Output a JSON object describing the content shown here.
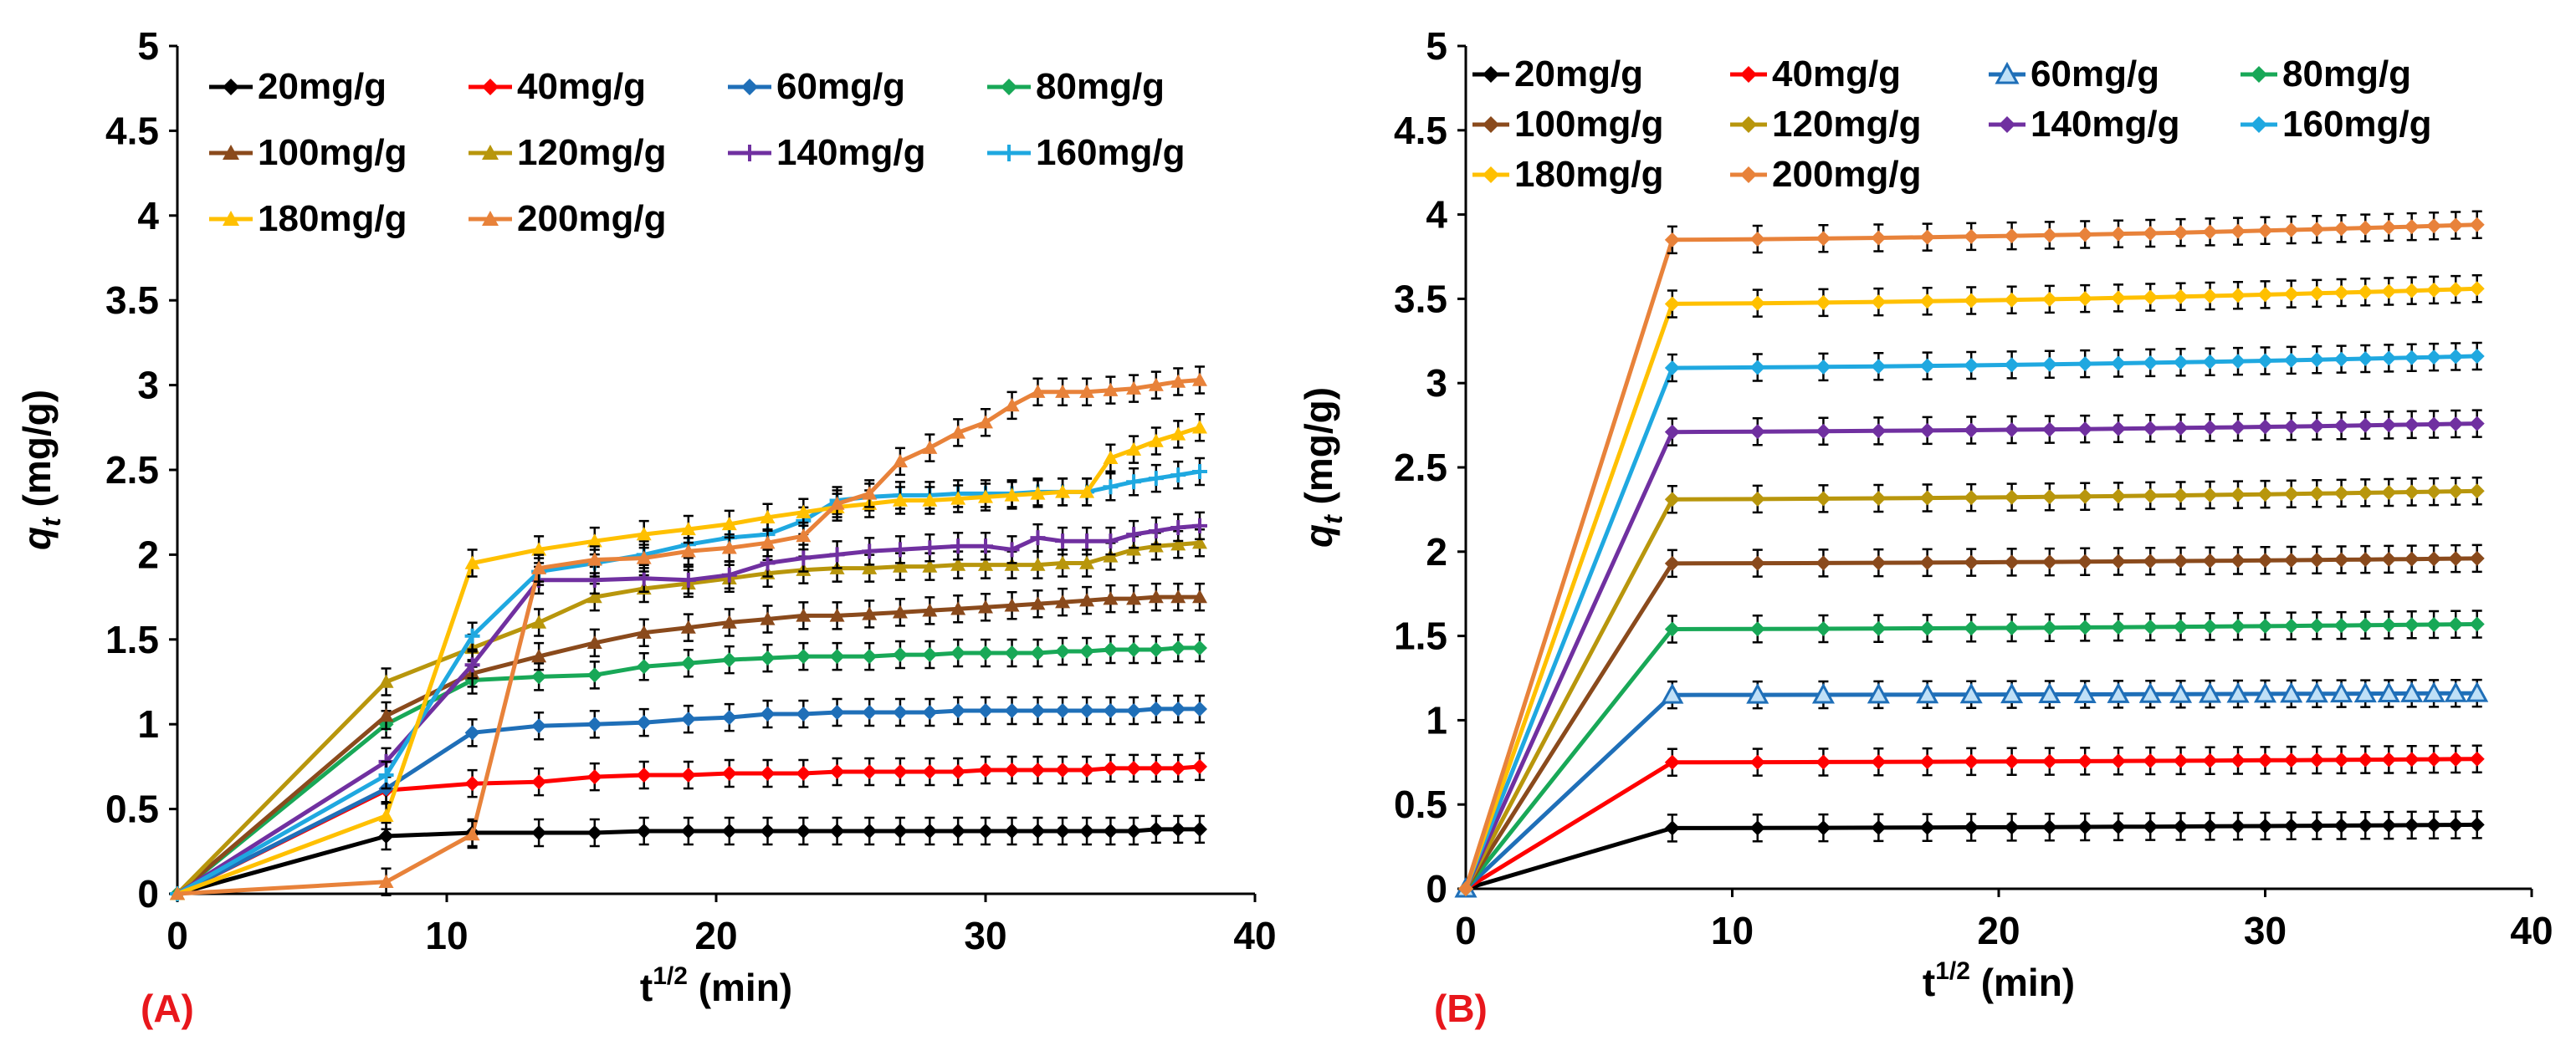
{
  "chart_data": [
    {
      "type": "line",
      "panel_label": "(A)",
      "xlabel_base": "t",
      "xlabel_sup": "1/2",
      "xlabel_unit": " (min)",
      "ylabel_var": "q",
      "ylabel_sub": "t",
      "ylabel_unit": " (mg/g)",
      "xlim": [
        0,
        40
      ],
      "ylim": [
        0,
        5
      ],
      "xticks": [
        "0",
        "10",
        "20",
        "30",
        "40"
      ],
      "yticks": [
        "0",
        "0.5",
        "1",
        "1.5",
        "2",
        "2.5",
        "3",
        "3.5",
        "4",
        "4.5",
        "5"
      ],
      "legend_position": "top-left",
      "grid": false,
      "x": [
        0,
        7.75,
        10.95,
        13.42,
        15.49,
        17.32,
        18.97,
        20.49,
        21.91,
        23.24,
        24.49,
        25.69,
        26.83,
        27.93,
        28.98,
        30.0,
        30.98,
        31.94,
        32.86,
        33.76,
        34.64,
        35.5,
        36.33,
        37.15,
        37.95
      ],
      "series": [
        {
          "name": "20mg/g",
          "color": "#000000",
          "marker": "diamond",
          "values": [
            0,
            0.34,
            0.36,
            0.36,
            0.36,
            0.37,
            0.37,
            0.37,
            0.37,
            0.37,
            0.37,
            0.37,
            0.37,
            0.37,
            0.37,
            0.37,
            0.37,
            0.37,
            0.37,
            0.37,
            0.37,
            0.37,
            0.38,
            0.38,
            0.38
          ]
        },
        {
          "name": "40mg/g",
          "color": "#ff0000",
          "marker": "diamond",
          "values": [
            0,
            0.61,
            0.65,
            0.66,
            0.69,
            0.7,
            0.7,
            0.71,
            0.71,
            0.71,
            0.72,
            0.72,
            0.72,
            0.72,
            0.72,
            0.73,
            0.73,
            0.73,
            0.73,
            0.73,
            0.74,
            0.74,
            0.74,
            0.74,
            0.75
          ]
        },
        {
          "name": "60mg/g",
          "color": "#1f6fb8",
          "marker": "diamond",
          "values": [
            0,
            0.62,
            0.95,
            0.99,
            1.0,
            1.01,
            1.03,
            1.04,
            1.06,
            1.06,
            1.07,
            1.07,
            1.07,
            1.07,
            1.08,
            1.08,
            1.08,
            1.08,
            1.08,
            1.08,
            1.08,
            1.08,
            1.09,
            1.09,
            1.09
          ]
        },
        {
          "name": "80mg/g",
          "color": "#18a857",
          "marker": "diamond",
          "values": [
            0,
            1.0,
            1.26,
            1.28,
            1.29,
            1.34,
            1.36,
            1.38,
            1.39,
            1.4,
            1.4,
            1.4,
            1.41,
            1.41,
            1.42,
            1.42,
            1.42,
            1.42,
            1.43,
            1.43,
            1.44,
            1.44,
            1.44,
            1.45,
            1.45
          ]
        },
        {
          "name": "100mg/g",
          "color": "#8a4a1c",
          "marker": "triangle",
          "values": [
            0,
            1.05,
            1.3,
            1.4,
            1.48,
            1.54,
            1.57,
            1.6,
            1.62,
            1.64,
            1.64,
            1.65,
            1.66,
            1.67,
            1.68,
            1.69,
            1.7,
            1.71,
            1.72,
            1.73,
            1.74,
            1.74,
            1.75,
            1.75,
            1.75
          ]
        },
        {
          "name": "120mg/g",
          "color": "#b8960c",
          "marker": "triangle",
          "values": [
            0,
            1.25,
            1.45,
            1.6,
            1.75,
            1.8,
            1.83,
            1.86,
            1.89,
            1.91,
            1.92,
            1.92,
            1.93,
            1.93,
            1.94,
            1.94,
            1.94,
            1.94,
            1.95,
            1.95,
            1.99,
            2.03,
            2.05,
            2.06,
            2.07
          ]
        },
        {
          "name": "140mg/g",
          "color": "#7030a0",
          "marker": "cross",
          "values": [
            0,
            0.78,
            1.35,
            1.85,
            1.85,
            1.86,
            1.85,
            1.88,
            1.95,
            1.98,
            2.0,
            2.02,
            2.03,
            2.04,
            2.05,
            2.05,
            2.03,
            2.1,
            2.08,
            2.08,
            2.08,
            2.12,
            2.14,
            2.16,
            2.17
          ]
        },
        {
          "name": "160mg/g",
          "color": "#1fa8e0",
          "marker": "cross",
          "values": [
            0,
            0.7,
            1.52,
            1.9,
            1.95,
            2.0,
            2.06,
            2.1,
            2.12,
            2.2,
            2.32,
            2.34,
            2.35,
            2.35,
            2.36,
            2.36,
            2.36,
            2.37,
            2.37,
            2.37,
            2.4,
            2.43,
            2.45,
            2.47,
            2.49
          ]
        },
        {
          "name": "180mg/g",
          "color": "#ffc000",
          "marker": "triangle",
          "values": [
            0,
            0.46,
            1.95,
            2.03,
            2.08,
            2.12,
            2.15,
            2.18,
            2.22,
            2.25,
            2.28,
            2.3,
            2.32,
            2.32,
            2.33,
            2.34,
            2.35,
            2.36,
            2.37,
            2.37,
            2.57,
            2.62,
            2.67,
            2.71,
            2.75
          ]
        },
        {
          "name": "200mg/g",
          "color": "#e8823a",
          "marker": "triangle",
          "values": [
            0,
            0.07,
            0.35,
            1.92,
            1.97,
            1.98,
            2.02,
            2.04,
            2.07,
            2.11,
            2.3,
            2.36,
            2.55,
            2.63,
            2.72,
            2.78,
            2.88,
            2.96,
            2.96,
            2.96,
            2.97,
            2.98,
            3.0,
            3.02,
            3.03
          ]
        }
      ]
    },
    {
      "type": "line",
      "panel_label": "(B)",
      "xlabel_base": "t",
      "xlabel_sup": "1/2",
      "xlabel_unit": " (min)",
      "ylabel_var": "q",
      "ylabel_sub": "t",
      "ylabel_unit": " (mg/g)",
      "xlim": [
        0,
        40
      ],
      "ylim": [
        0,
        5
      ],
      "xticks": [
        "0",
        "10",
        "20",
        "30",
        "40"
      ],
      "yticks": [
        "0",
        "0.5",
        "1",
        "1.5",
        "2",
        "2.5",
        "3",
        "3.5",
        "4",
        "4.5",
        "5"
      ],
      "legend_position": "top-left",
      "grid": false,
      "x": [
        0,
        7.75,
        10.95,
        13.42,
        15.49,
        17.32,
        18.97,
        20.49,
        21.91,
        23.24,
        24.49,
        25.69,
        26.83,
        27.93,
        28.98,
        30.0,
        30.98,
        31.94,
        32.86,
        33.76,
        34.64,
        35.5,
        36.33,
        37.15,
        37.95
      ],
      "series": [
        {
          "name": "20mg/g",
          "color": "#000000",
          "marker": "diamond",
          "start": 0.36,
          "end": 0.38
        },
        {
          "name": "40mg/g",
          "color": "#ff0000",
          "marker": "diamond",
          "start": 0.75,
          "end": 0.77
        },
        {
          "name": "60mg/g",
          "color": "#1f6fb8",
          "marker": "triangle-open",
          "start": 1.15,
          "end": 1.16
        },
        {
          "name": "80mg/g",
          "color": "#18a857",
          "marker": "diamond",
          "start": 1.54,
          "end": 1.57
        },
        {
          "name": "100mg/g",
          "color": "#8a4a1c",
          "marker": "diamond",
          "start": 1.93,
          "end": 1.96
        },
        {
          "name": "120mg/g",
          "color": "#b8960c",
          "marker": "diamond",
          "start": 2.31,
          "end": 2.36
        },
        {
          "name": "140mg/g",
          "color": "#7030a0",
          "marker": "diamond",
          "start": 2.71,
          "end": 2.76
        },
        {
          "name": "160mg/g",
          "color": "#1fa8e0",
          "marker": "diamond",
          "start": 3.09,
          "end": 3.16
        },
        {
          "name": "180mg/g",
          "color": "#ffc000",
          "marker": "diamond",
          "start": 3.47,
          "end": 3.56
        },
        {
          "name": "200mg/g",
          "color": "#e8823a",
          "marker": "diamond",
          "start": 3.85,
          "end": 3.94
        }
      ]
    }
  ]
}
